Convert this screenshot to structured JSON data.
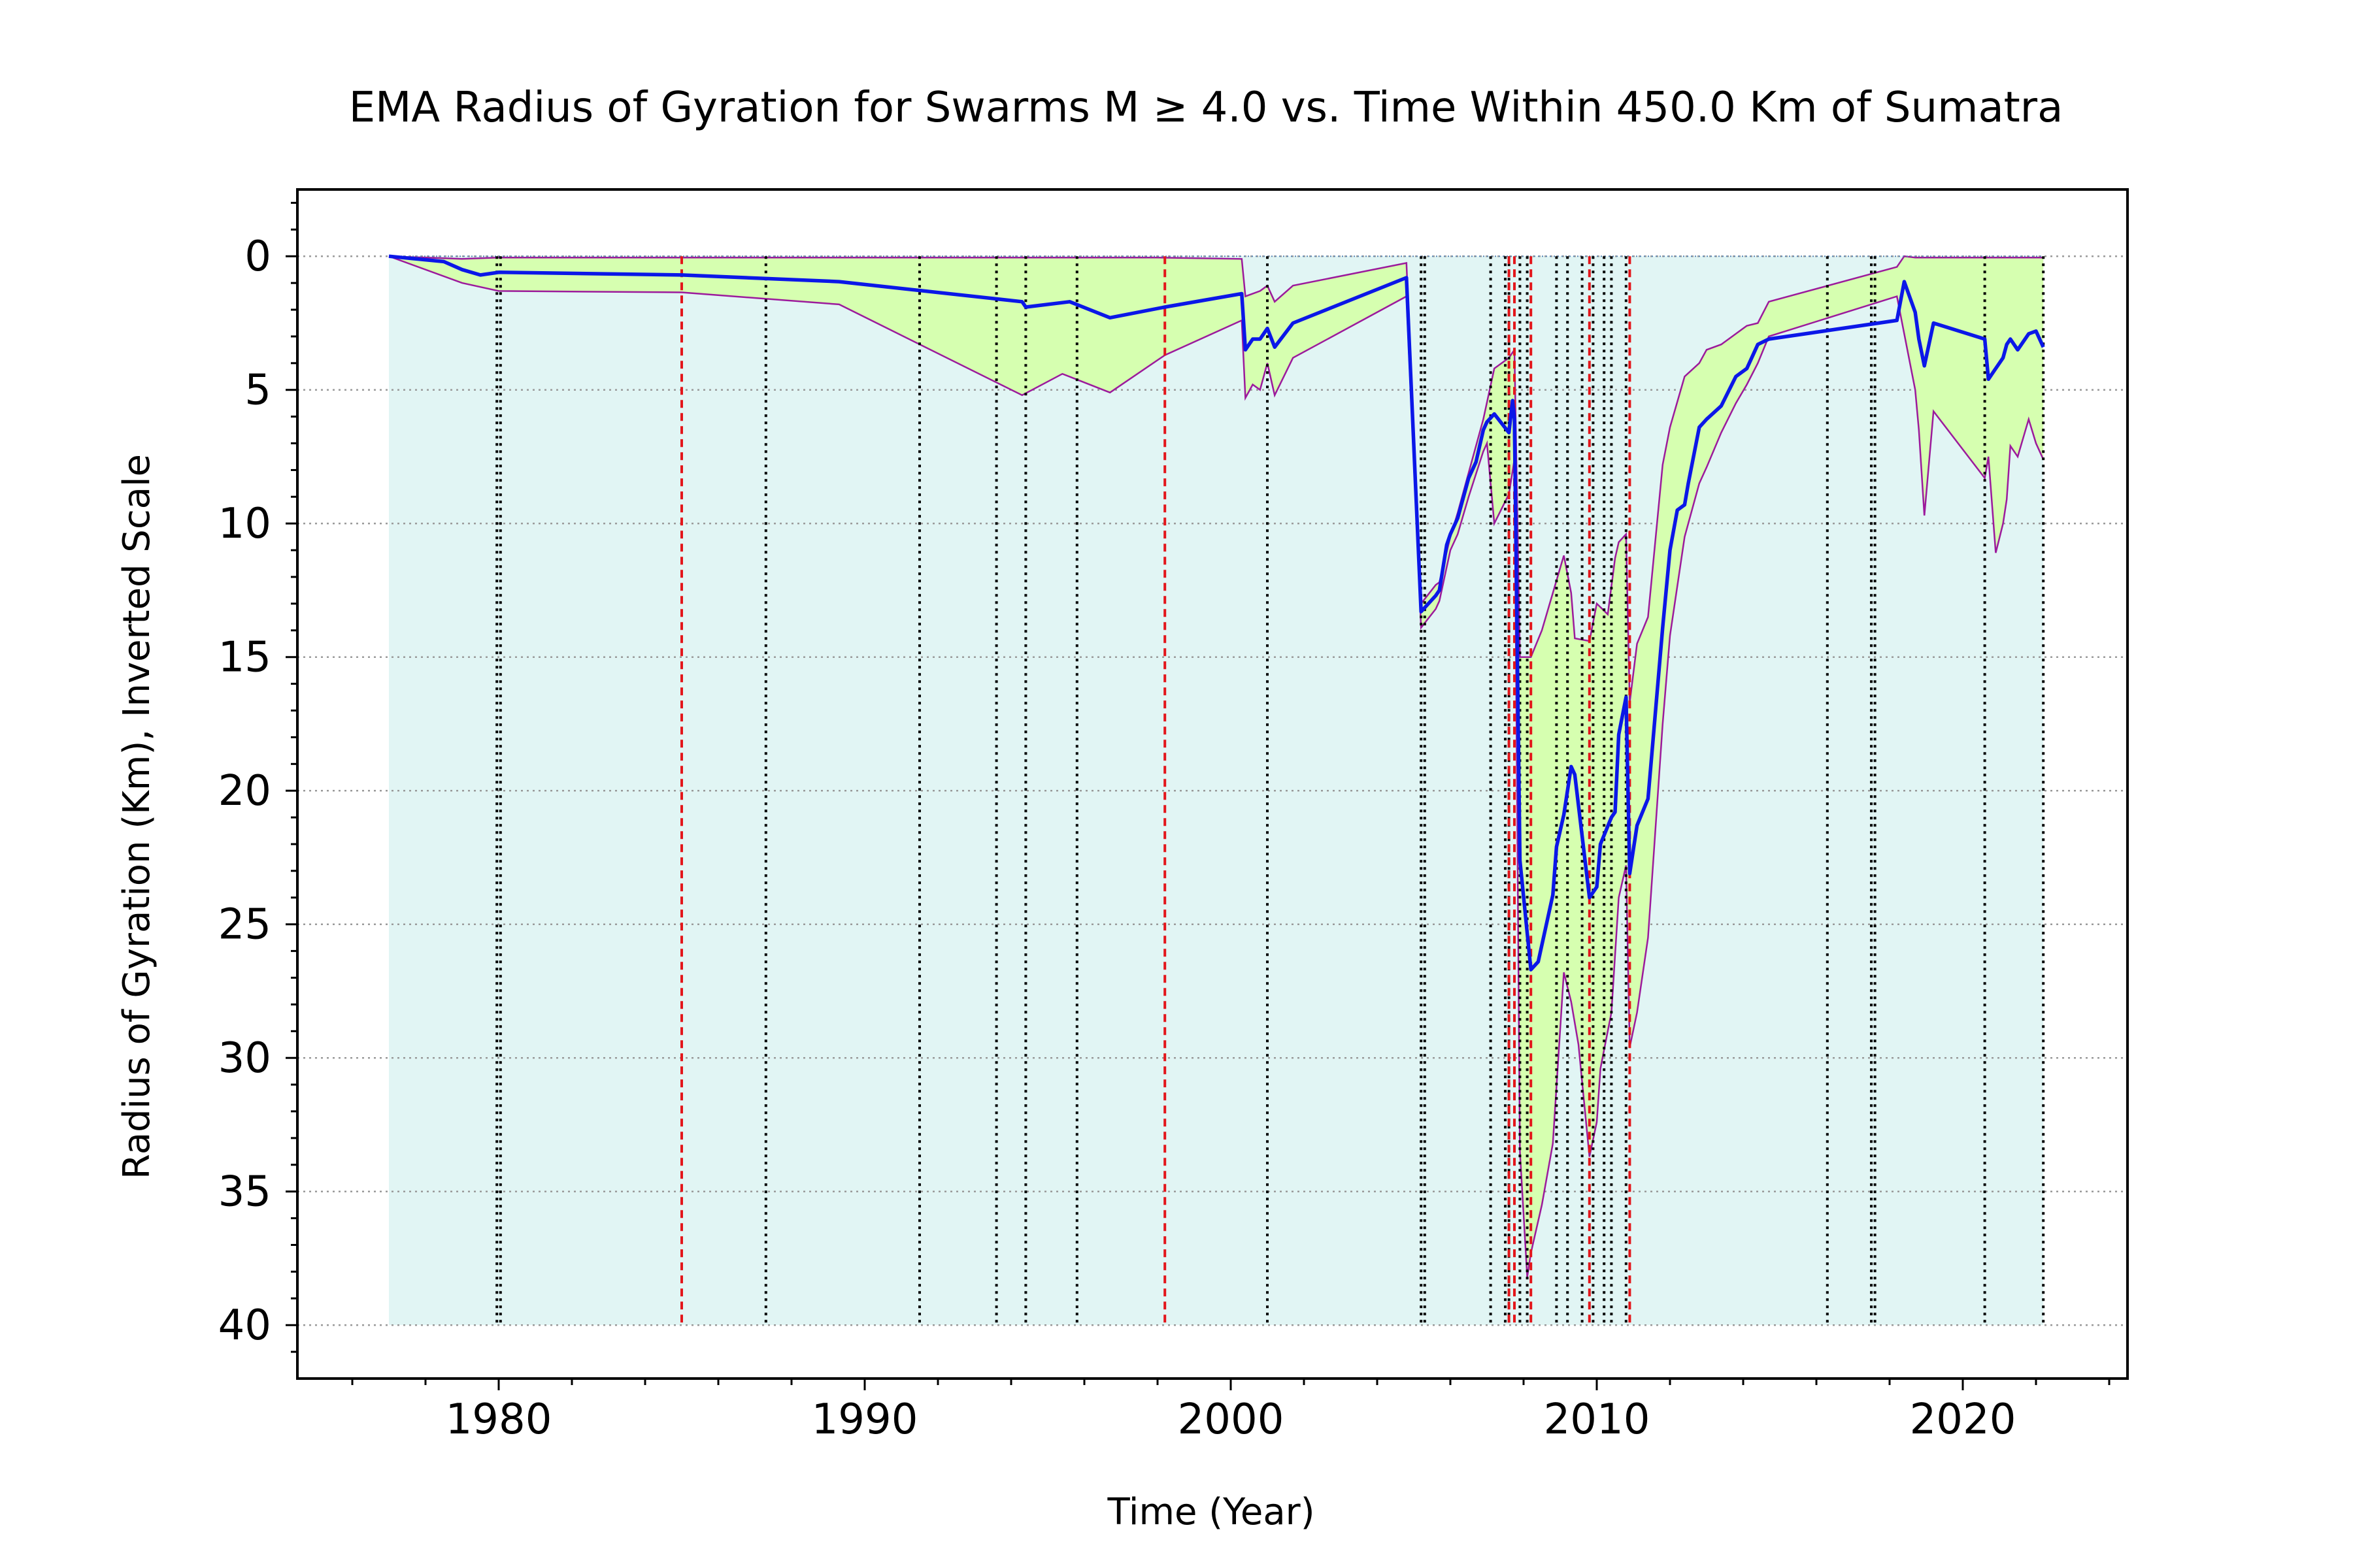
{
  "chart_data": {
    "type": "line",
    "title": "EMA Radius of Gyration for Swarms M ≥ 4.0 vs. Time Within 450.0 Km of Sumatra",
    "xlabel": "Time (Year)",
    "ylabel": "Radius of Gyration (Km), Inverted Scale",
    "xlim": [
      1974.5,
      2024.5
    ],
    "ylim": [
      42,
      -2.5
    ],
    "y_inverted": true,
    "x_ticks": [
      1980,
      1990,
      2000,
      2010,
      2020
    ],
    "x_tick_labels": [
      "1980",
      "1990",
      "2000",
      "2010",
      "2020"
    ],
    "y_ticks": [
      0,
      5,
      10,
      15,
      20,
      25,
      30,
      35,
      40
    ],
    "y_tick_labels": [
      "0",
      "5",
      "10",
      "15",
      "20",
      "25",
      "30",
      "35",
      "40"
    ],
    "grid": "y-dotted",
    "background_fill": {
      "from_y": 0,
      "to_y": 40,
      "x_range": [
        1977.0,
        2022.2
      ]
    },
    "series": [
      {
        "role": "ema",
        "x": [
          1977.0,
          1978.5,
          1979.0,
          1979.5,
          1980.0,
          1985.0,
          1989.3,
          1994.3,
          1994.4,
          1995.6,
          1996.7,
          1998.2,
          2000.3,
          2000.4,
          2000.6,
          2000.8,
          2001.0,
          2001.2,
          2001.7,
          2004.8,
          2005.2,
          2005.6,
          2005.7,
          2005.9,
          2006.0,
          2006.2,
          2006.5,
          2006.7,
          2006.9,
          2007.0,
          2007.2,
          2007.6,
          2007.7,
          2007.75,
          2007.9,
          2008.2,
          2008.4,
          2008.8,
          2008.9,
          2009.1,
          2009.3,
          2009.4,
          2009.8,
          2010.0,
          2010.1,
          2010.4,
          2010.5,
          2010.6,
          2010.8,
          2010.9,
          2011.1,
          2011.4,
          2011.8,
          2012.0,
          2012.2,
          2012.4,
          2012.5,
          2012.8,
          2013.0,
          2013.4,
          2013.8,
          2014.1,
          2014.4,
          2014.7,
          2018.2,
          2018.4,
          2018.7,
          2018.8,
          2018.95,
          2019.2,
          2020.6,
          2020.7,
          2020.9,
          2021.1,
          2021.2,
          2021.3,
          2021.5,
          2021.8,
          2022.0,
          2022.2
        ],
        "values": [
          0.0,
          0.2,
          0.5,
          0.7,
          0.6,
          0.7,
          0.95,
          1.7,
          1.9,
          1.7,
          2.3,
          1.9,
          1.4,
          3.5,
          3.1,
          3.1,
          2.7,
          3.4,
          2.5,
          0.8,
          13.3,
          12.7,
          12.5,
          10.8,
          10.4,
          9.8,
          8.3,
          7.7,
          6.5,
          6.2,
          5.9,
          6.6,
          5.4,
          6.1,
          22.6,
          26.7,
          26.4,
          23.9,
          22.1,
          20.9,
          19.1,
          19.4,
          24.0,
          23.6,
          22.0,
          21.0,
          20.8,
          17.9,
          16.5,
          23.1,
          21.3,
          20.3,
          13.9,
          11.0,
          9.5,
          9.3,
          8.5,
          6.4,
          6.1,
          5.6,
          4.5,
          4.2,
          3.3,
          3.1,
          2.4,
          0.95,
          2.1,
          3.1,
          4.1,
          2.5,
          3.1,
          4.6,
          4.2,
          3.8,
          3.3,
          3.1,
          3.5,
          2.9,
          2.8,
          3.4
        ]
      },
      {
        "role": "upper-bound",
        "x": [
          1977.0,
          1979.0,
          1980.0,
          1985.0,
          1990.0,
          1995.0,
          1998.0,
          2000.3,
          2000.4,
          2000.8,
          2001.0,
          2001.2,
          2001.7,
          2004.8,
          2005.2,
          2005.6,
          2005.7,
          2006.0,
          2006.2,
          2006.5,
          2006.9,
          2007.2,
          2007.6,
          2007.75,
          2007.9,
          2008.2,
          2008.5,
          2008.8,
          2009.1,
          2009.3,
          2009.4,
          2009.8,
          2010.0,
          2010.3,
          2010.5,
          2010.6,
          2010.8,
          2010.9,
          2011.1,
          2011.4,
          2011.8,
          2012.0,
          2012.4,
          2012.8,
          2013.0,
          2013.4,
          2013.8,
          2014.1,
          2014.4,
          2014.7,
          2018.2,
          2018.4,
          2018.7,
          2022.2
        ],
        "values": [
          0.0,
          0.1,
          0.05,
          0.05,
          0.05,
          0.05,
          0.05,
          0.1,
          1.5,
          1.3,
          1.1,
          1.7,
          1.1,
          0.25,
          13.0,
          12.3,
          12.2,
          10.5,
          9.6,
          8.1,
          6.1,
          4.2,
          3.8,
          3.5,
          15.0,
          15.0,
          14.0,
          12.6,
          11.2,
          12.6,
          14.3,
          14.4,
          13.0,
          13.4,
          11.3,
          10.7,
          10.4,
          16.7,
          14.5,
          13.5,
          7.8,
          6.4,
          4.5,
          4.0,
          3.5,
          3.3,
          2.9,
          2.6,
          2.5,
          1.7,
          0.4,
          0.0,
          0.05,
          0.05
        ]
      },
      {
        "role": "lower-bound",
        "x": [
          1977.0,
          1979.0,
          1980.0,
          1985.0,
          1989.3,
          1994.3,
          1995.4,
          1996.7,
          1998.2,
          2000.3,
          2000.4,
          2000.6,
          2000.8,
          2001.0,
          2001.2,
          2001.7,
          2004.8,
          2005.2,
          2005.6,
          2005.7,
          2006.0,
          2006.2,
          2006.5,
          2006.9,
          2007.0,
          2007.2,
          2007.6,
          2007.75,
          2007.9,
          2008.1,
          2008.2,
          2008.5,
          2008.8,
          2009.1,
          2009.3,
          2009.5,
          2009.8,
          2010.0,
          2010.1,
          2010.4,
          2010.6,
          2010.8,
          2010.9,
          2011.1,
          2011.4,
          2011.8,
          2012.0,
          2012.4,
          2012.8,
          2013.0,
          2013.4,
          2013.8,
          2014.1,
          2014.4,
          2014.7,
          2018.2,
          2018.4,
          2018.7,
          2018.8,
          2018.95,
          2019.2,
          2020.6,
          2020.7,
          2020.9,
          2021.1,
          2021.2,
          2021.3,
          2021.5,
          2021.8,
          2022.0,
          2022.2
        ],
        "values": [
          0.0,
          1.0,
          1.3,
          1.35,
          1.8,
          5.2,
          4.4,
          5.1,
          3.7,
          2.4,
          5.3,
          4.8,
          5.0,
          4.0,
          5.2,
          3.8,
          1.5,
          13.9,
          13.2,
          12.9,
          11.0,
          10.4,
          9.0,
          7.3,
          7.0,
          10.0,
          8.9,
          7.6,
          33.5,
          38.2,
          37.3,
          35.5,
          33.2,
          26.8,
          27.9,
          29.5,
          33.7,
          32.4,
          30.4,
          28.3,
          24.0,
          22.8,
          29.6,
          28.3,
          25.5,
          17.5,
          14.2,
          10.5,
          8.5,
          7.9,
          6.6,
          5.5,
          4.8,
          4.0,
          3.0,
          1.5,
          2.9,
          5.0,
          6.5,
          9.7,
          5.8,
          8.3,
          7.5,
          11.1,
          10.0,
          9.1,
          7.1,
          7.5,
          6.1,
          7.0,
          7.6
        ]
      }
    ],
    "vertical_lines": {
      "red_dashed": [
        1985.0,
        1998.2,
        2007.6,
        2007.75,
        2008.2,
        2009.8,
        2010.9
      ],
      "black_dotted": [
        1979.95,
        1980.05,
        1987.3,
        1991.5,
        1993.6,
        1994.4,
        1995.8,
        2001.0,
        2005.2,
        2005.3,
        2007.1,
        2007.5,
        2007.6,
        2007.9,
        2008.1,
        2008.9,
        2009.2,
        2009.6,
        2009.9,
        2010.2,
        2010.4,
        2010.8,
        2016.3,
        2017.5,
        2017.6,
        2020.6,
        2022.2
      ]
    },
    "colors": {
      "ema_line": "#0b17e8",
      "band_edge": "#9c1a9c",
      "band_fill": "#d6ffb0",
      "background_fill": "#e1f5f4",
      "red_lines": "#e3161b",
      "black_lines": "#000000",
      "grid": "#9a9a9a",
      "zero_line": "#5a86b5"
    }
  }
}
